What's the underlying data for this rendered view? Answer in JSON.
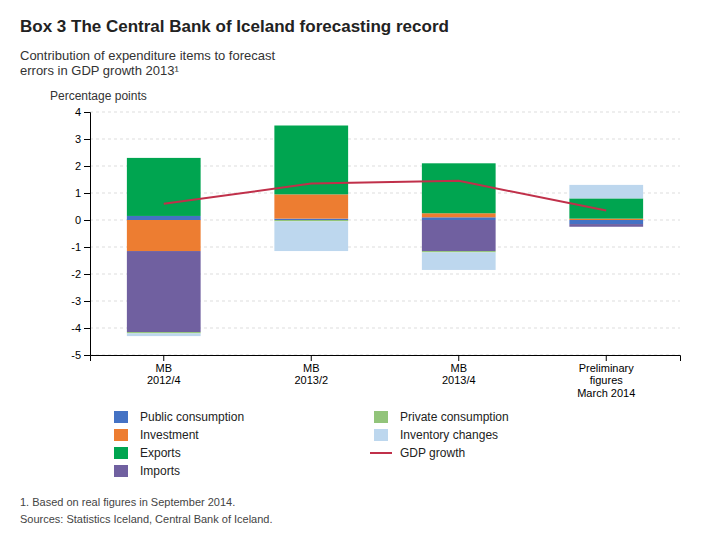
{
  "chart_data": {
    "type": "bar",
    "stacked": true,
    "title": "Box 3 The Central Bank of Iceland forecasting record",
    "subtitle": "Contribution of expenditure items to forecast\nerrors in GDP growth 2013¹",
    "ylabel": "Percentage points",
    "annotations": [
      "1. Based on real figures in September 2014.",
      "Sources: Statistics Iceland, Central Bank of Iceland."
    ],
    "categories": [
      "MB\n2012/4",
      "MB\n2013/2",
      "MB\n2013/4",
      "Preliminary\nfigures\nMarch 2014"
    ],
    "series": [
      {
        "name": "Public consumption",
        "color": "#4472c4",
        "values": [
          0.15,
          0.05,
          0.1,
          -0.15
        ]
      },
      {
        "name": "Investment",
        "color": "#ed7d31",
        "values": [
          -1.15,
          0.9,
          0.15,
          0.05
        ]
      },
      {
        "name": "Exports",
        "color": "#00a550",
        "values": [
          2.15,
          2.55,
          1.85,
          0.75
        ]
      },
      {
        "name": "Imports",
        "color": "#7060a0",
        "values": [
          -3.0,
          0.0,
          -1.15,
          -0.1
        ]
      },
      {
        "name": "Private consumption",
        "color": "#92c47a",
        "values": [
          -0.05,
          -0.05,
          -0.05,
          0.0
        ]
      },
      {
        "name": "Inventory changes",
        "color": "#bdd7ee",
        "values": [
          -0.1,
          -1.1,
          -0.65,
          0.5
        ]
      },
      {
        "name": "GDP growth",
        "color": "#c0304a",
        "type": "line",
        "values": [
          0.6,
          1.35,
          1.45,
          0.35
        ]
      }
    ],
    "ylim": [
      -5,
      4
    ],
    "yticks": [
      -5,
      -4,
      -3,
      -2,
      -1,
      0,
      1,
      2,
      3,
      4
    ],
    "grid": true,
    "legend": "bottom"
  }
}
